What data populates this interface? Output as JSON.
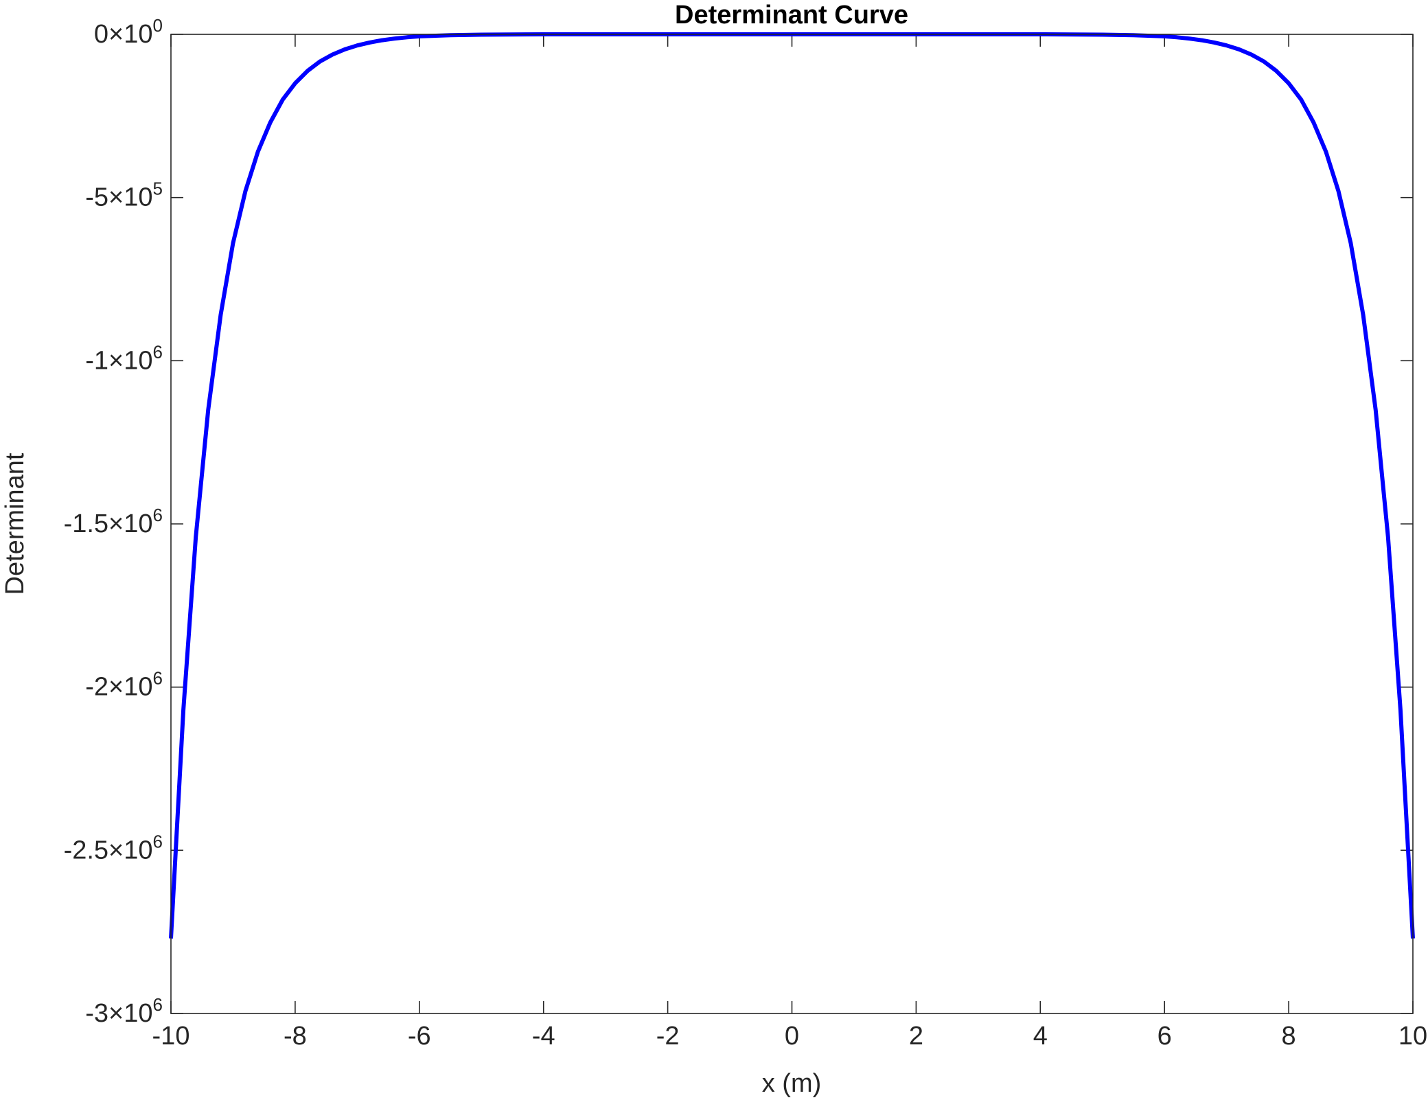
{
  "chart_data": {
    "type": "line",
    "title": "Determinant Curve",
    "xlabel": "x (m)",
    "ylabel": "Determinant",
    "xlim": [
      -10,
      10
    ],
    "ylim": [
      -3000000,
      0
    ],
    "grid": false,
    "x_ticks": [
      {
        "value": -10,
        "label": "-10"
      },
      {
        "value": -8,
        "label": "-8"
      },
      {
        "value": -6,
        "label": "-6"
      },
      {
        "value": -4,
        "label": "-4"
      },
      {
        "value": -2,
        "label": "-2"
      },
      {
        "value": 0,
        "label": "0"
      },
      {
        "value": 2,
        "label": "2"
      },
      {
        "value": 4,
        "label": "4"
      },
      {
        "value": 6,
        "label": "6"
      },
      {
        "value": 8,
        "label": "8"
      },
      {
        "value": 10,
        "label": "10"
      }
    ],
    "y_ticks": [
      {
        "value": 0,
        "mantissa": "0",
        "exponent": "0"
      },
      {
        "value": -500000,
        "mantissa": "-5",
        "exponent": "5"
      },
      {
        "value": -1000000,
        "mantissa": "-1",
        "exponent": "6"
      },
      {
        "value": -1500000,
        "mantissa": "-1.5",
        "exponent": "6"
      },
      {
        "value": -2000000,
        "mantissa": "-2",
        "exponent": "6"
      },
      {
        "value": -2500000,
        "mantissa": "-2.5",
        "exponent": "6"
      },
      {
        "value": -3000000,
        "mantissa": "-3",
        "exponent": "6"
      }
    ],
    "series": [
      {
        "color": "#0000ff",
        "x": [
          -10,
          -9.8,
          -9.6,
          -9.4,
          -9.2,
          -9,
          -8.8,
          -8.6,
          -8.4,
          -8.2,
          -8,
          -7.8,
          -7.6,
          -7.4,
          -7.2,
          -7,
          -6.8,
          -6.6,
          -6.4,
          -6.2,
          -6,
          -5.5,
          -5,
          -4,
          -3,
          -2,
          -1,
          0,
          1,
          2,
          3,
          4,
          5,
          5.5,
          6,
          6.2,
          6.4,
          6.6,
          6.8,
          7,
          7.2,
          7.4,
          7.6,
          7.8,
          8,
          8.2,
          8.4,
          8.6,
          8.8,
          9,
          9.2,
          9.4,
          9.6,
          9.8,
          10
        ],
        "y": [
          -2770000,
          -2070000,
          -1540000,
          -1150000,
          -860000,
          -640000,
          -480000,
          -360000,
          -270000,
          -200000,
          -150000,
          -112000,
          -83000,
          -62000,
          -46000,
          -34000,
          -25000,
          -18000,
          -13000,
          -9000,
          -6000,
          -2500,
          -1000,
          0,
          0,
          0,
          0,
          0,
          0,
          0,
          0,
          0,
          -1000,
          -2500,
          -6000,
          -9000,
          -13000,
          -18000,
          -25000,
          -34000,
          -46000,
          -62000,
          -83000,
          -112000,
          -150000,
          -200000,
          -270000,
          -360000,
          -480000,
          -640000,
          -860000,
          -1150000,
          -1540000,
          -2070000,
          -2770000
        ]
      }
    ]
  }
}
